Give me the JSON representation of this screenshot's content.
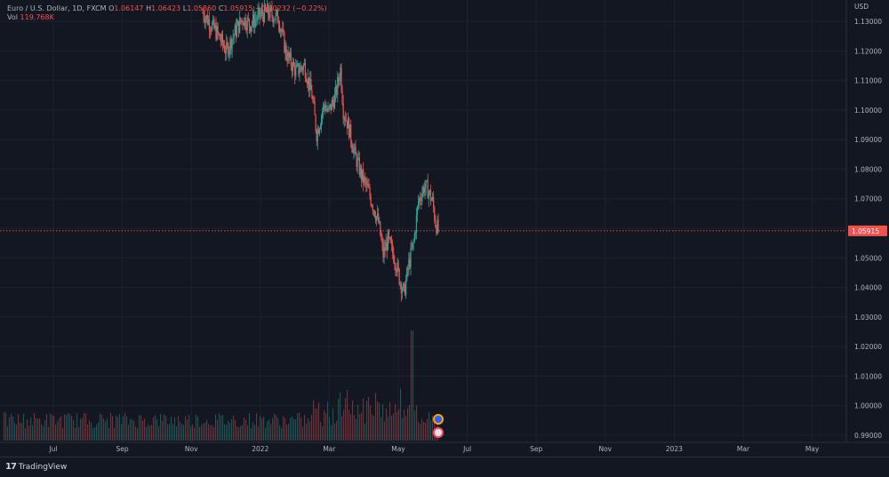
{
  "header": {
    "symbol": "Euro / U.S. Dollar, 1D, FXCM",
    "open_label": "O",
    "open": "1.06147",
    "high_label": "H",
    "high": "1.06423",
    "low_label": "L",
    "low": "1.05860",
    "close_label": "C",
    "close": "1.05915",
    "change": "−0.00232 (−0.22%)"
  },
  "volume_legend": {
    "label": "Vol",
    "value": "119.768K"
  },
  "footer": {
    "brand": "TradingView"
  },
  "colors": {
    "up": "#26a69a",
    "down": "#ef5350",
    "background": "#131722",
    "grid": "#1e222d",
    "axis_text": "#b2b5be",
    "price_line": "#ef5350"
  },
  "chart_data": {
    "type": "candlestick",
    "currency": "USD",
    "current_price": "1.05915",
    "y_ticks": [
      "1.13000",
      "1.12000",
      "1.11000",
      "1.10000",
      "1.09000",
      "1.08000",
      "1.07000",
      "1.06000",
      "1.05000",
      "1.04000",
      "1.03000",
      "1.02000",
      "1.01000",
      "1.00000",
      "0.99000"
    ],
    "x_ticks": [
      "Jul",
      "Sep",
      "Nov",
      "2022",
      "Mar",
      "May",
      "Jul",
      "Sep",
      "Nov",
      "2023",
      "Mar",
      "May"
    ],
    "ylim": [
      0.9895,
      1.1365
    ],
    "price_path": [
      [
        20,
        1.133
      ],
      [
        35,
        1.126
      ],
      [
        45,
        1.12
      ],
      [
        55,
        1.127
      ],
      [
        62,
        1.131
      ],
      [
        70,
        1.129
      ],
      [
        80,
        1.132
      ],
      [
        88,
        1.133
      ],
      [
        100,
        1.131
      ],
      [
        108,
        1.119
      ],
      [
        118,
        1.113
      ],
      [
        127,
        1.115
      ],
      [
        135,
        1.105
      ],
      [
        140,
        1.092
      ],
      [
        148,
        1.102
      ],
      [
        152,
        1.099
      ],
      [
        160,
        1.105
      ],
      [
        165,
        1.114
      ],
      [
        168,
        1.1
      ],
      [
        173,
        1.095
      ],
      [
        180,
        1.085
      ],
      [
        187,
        1.078
      ],
      [
        195,
        1.072
      ],
      [
        205,
        1.062
      ],
      [
        210,
        1.051
      ],
      [
        215,
        1.056
      ],
      [
        222,
        1.05
      ],
      [
        228,
        1.042
      ],
      [
        232,
        1.038
      ],
      [
        237,
        1.048
      ],
      [
        242,
        1.055
      ],
      [
        247,
        1.069
      ],
      [
        253,
        1.074
      ],
      [
        257,
        1.073
      ],
      [
        262,
        1.069
      ],
      [
        265,
        1.062
      ],
      [
        268,
        1.0592
      ]
    ],
    "volume_annotation": "1.0 price ~ 1.01-1.02 volume spike near late May"
  }
}
